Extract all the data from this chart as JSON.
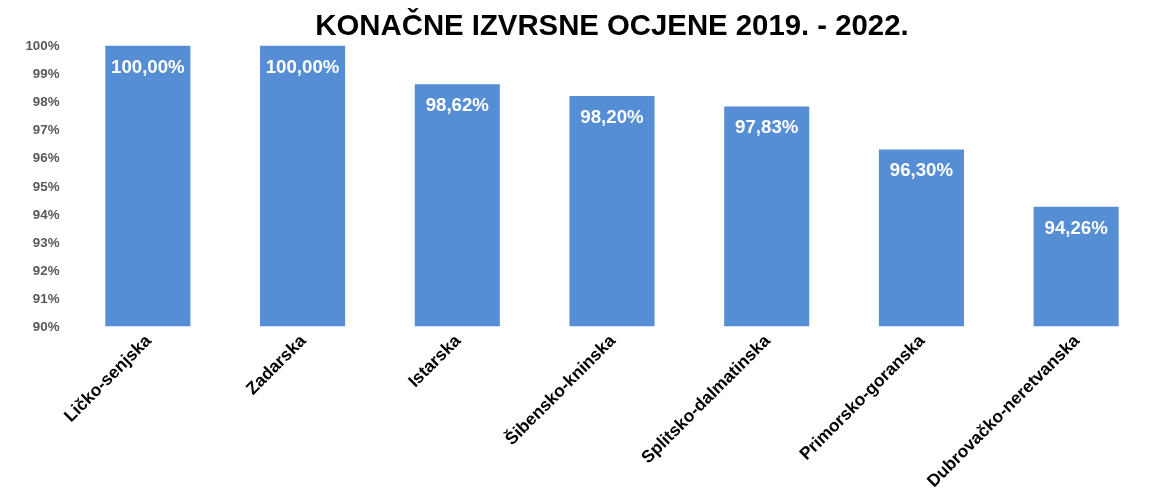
{
  "chart_data": {
    "type": "bar",
    "title": "KONAČNE IZVRSNE OCJENE 2019. - 2022.",
    "categories": [
      "Ličko-senjska",
      "Zadarska",
      "Istarska",
      "Šibensko-kninska",
      "Splitsko-dalmatinska",
      "Primorsko-goranska",
      "Dubrovačko-neretvanska"
    ],
    "values": [
      100,
      100,
      98.62,
      98.2,
      97.83,
      96.3,
      94.26
    ],
    "value_labels": [
      "100,00%",
      "100,00%",
      "98,62%",
      "98,20%",
      "97,83%",
      "96,30%",
      "94,26%"
    ],
    "color": "#558ed5",
    "ylim": [
      90,
      100
    ],
    "yticks": [
      {
        "value": 90,
        "label": "90%"
      },
      {
        "value": 91,
        "label": "91%"
      },
      {
        "value": 92,
        "label": "92%"
      },
      {
        "value": 93,
        "label": "93%"
      },
      {
        "value": 94,
        "label": "94%"
      },
      {
        "value": 95,
        "label": "95%"
      },
      {
        "value": 96,
        "label": "96%"
      },
      {
        "value": 97,
        "label": "97%"
      },
      {
        "value": 98,
        "label": "98%"
      },
      {
        "value": 99,
        "label": "99%"
      },
      {
        "value": 100,
        "label": "100%"
      }
    ],
    "grid": false
  }
}
